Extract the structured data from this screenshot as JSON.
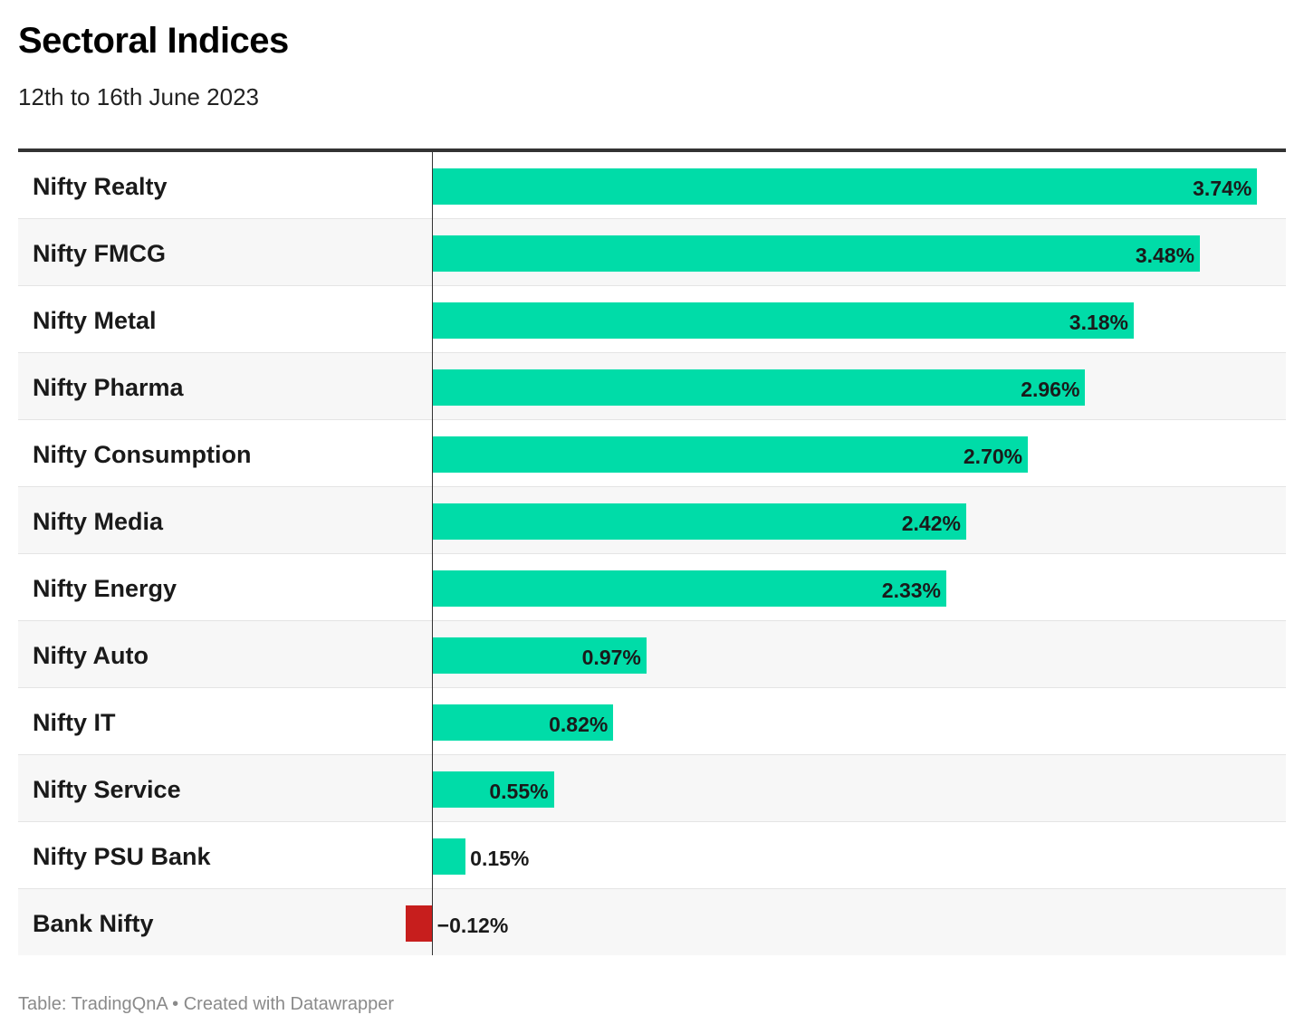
{
  "title": "Sectoral Indices",
  "subtitle": "12th to 16th June 2023",
  "footer": {
    "source_prefix": "Table:",
    "source": "TradingQnA",
    "separator": "•",
    "credit": "Created with Datawrapper"
  },
  "colors": {
    "positive": "#00dca8",
    "negative": "#c71e1d",
    "rule": "#333333"
  },
  "chart_data": {
    "type": "bar",
    "orientation": "horizontal",
    "title": "Sectoral Indices",
    "subtitle": "12th to 16th June 2023",
    "categories": [
      "Nifty Realty",
      "Nifty FMCG",
      "Nifty Metal",
      "Nifty Pharma",
      "Nifty Consumption",
      "Nifty Media",
      "Nifty Energy",
      "Nifty Auto",
      "Nifty IT",
      "Nifty Service",
      "Nifty PSU Bank",
      "Bank Nifty"
    ],
    "values": [
      3.74,
      3.48,
      3.18,
      2.96,
      2.7,
      2.42,
      2.33,
      0.97,
      0.82,
      0.55,
      0.15,
      -0.12
    ],
    "value_labels": [
      "3.74%",
      "3.48%",
      "3.18%",
      "2.96%",
      "2.70%",
      "2.42%",
      "2.33%",
      "0.97%",
      "0.82%",
      "0.55%",
      "0.15%",
      "−0.12%"
    ],
    "unit": "%",
    "xlim": [
      -0.13,
      3.87
    ],
    "grid": false,
    "legend": "none"
  }
}
